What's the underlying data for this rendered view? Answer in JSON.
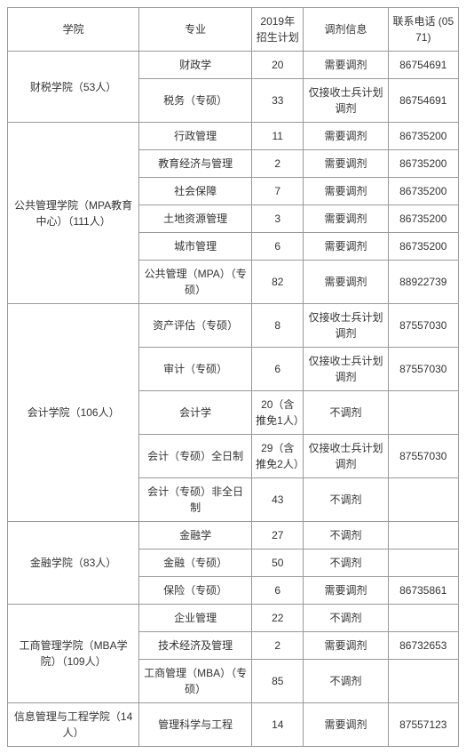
{
  "headers": {
    "school": "学院",
    "major": "专业",
    "plan": "2019年招生计划",
    "info": "调剂信息",
    "phone": "联系电话 (0571)"
  },
  "schools": [
    {
      "name": "财税学院（53人）",
      "rows": [
        {
          "major": "财政学",
          "plan": "20",
          "info": "需要调剂",
          "phone": "86754691"
        },
        {
          "major": "税务（专硕）",
          "plan": "33",
          "info": "仅接收士兵计划调剂",
          "phone": "86754691"
        }
      ]
    },
    {
      "name": "公共管理学院（MPA教育中心）（111人）",
      "rows": [
        {
          "major": "行政管理",
          "plan": "11",
          "info": "需要调剂",
          "phone": "86735200"
        },
        {
          "major": "教育经济与管理",
          "plan": "2",
          "info": "需要调剂",
          "phone": "86735200"
        },
        {
          "major": "社会保障",
          "plan": "7",
          "info": "需要调剂",
          "phone": "86735200"
        },
        {
          "major": "土地资源管理",
          "plan": "3",
          "info": "需要调剂",
          "phone": "86735200"
        },
        {
          "major": "城市管理",
          "plan": "6",
          "info": "需要调剂",
          "phone": "86735200"
        },
        {
          "major": "公共管理（MPA）（专硕）",
          "plan": "82",
          "info": "需要调剂",
          "phone": "88922739"
        }
      ]
    },
    {
      "name": "会计学院（106人）",
      "rows": [
        {
          "major": "资产评估（专硕）",
          "plan": "8",
          "info": "仅接收士兵计划调剂",
          "phone": "87557030"
        },
        {
          "major": "审计（专硕）",
          "plan": "6",
          "info": "仅接收士兵计划调剂",
          "phone": "87557030"
        },
        {
          "major": "会计学",
          "plan": "20（含推免1人）",
          "info": "不调剂",
          "phone": ""
        },
        {
          "major": "会计（专硕）全日制",
          "plan": "29（含推免2人）",
          "info": "仅接收士兵计划调剂",
          "phone": "87557030"
        },
        {
          "major": "会计（专硕）非全日制",
          "plan": "43",
          "info": "不调剂",
          "phone": ""
        }
      ]
    },
    {
      "name": "金融学院（83人）",
      "rows": [
        {
          "major": "金融学",
          "plan": "27",
          "info": "不调剂",
          "phone": ""
        },
        {
          "major": "金融（专硕）",
          "plan": "50",
          "info": "不调剂",
          "phone": ""
        },
        {
          "major": "保险（专硕）",
          "plan": "6",
          "info": "需要调剂",
          "phone": "86735861"
        }
      ]
    },
    {
      "name": "工商管理学院（MBA学院）（109人）",
      "rows": [
        {
          "major": "企业管理",
          "plan": "22",
          "info": "不调剂",
          "phone": ""
        },
        {
          "major": "技术经济及管理",
          "plan": "2",
          "info": "需要调剂",
          "phone": "86732653"
        },
        {
          "major": "工商管理（MBA）（专硕）",
          "plan": "85",
          "info": "不调剂",
          "phone": ""
        }
      ]
    },
    {
      "name": "信息管理与工程学院（14人）",
      "rows": [
        {
          "major": "管理科学与工程",
          "plan": "14",
          "info": "需要调剂",
          "phone": "87557123"
        }
      ]
    }
  ]
}
